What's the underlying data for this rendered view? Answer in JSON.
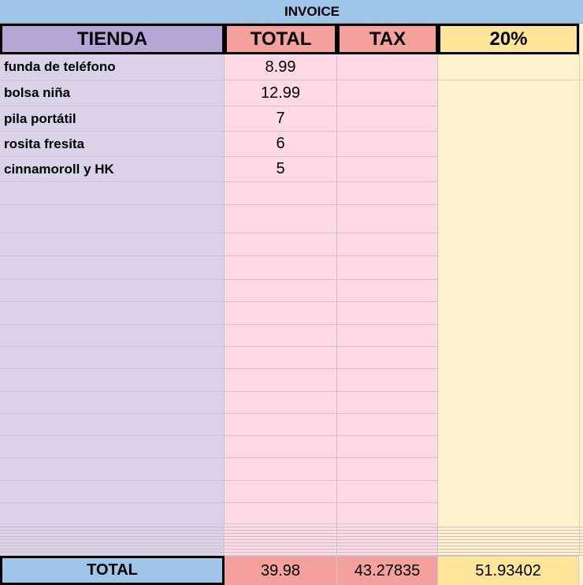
{
  "title": "INVOICE",
  "headers": [
    "TIENDA",
    "TOTAL",
    "TAX",
    "20%"
  ],
  "rows": [
    [
      "funda de teléfono",
      "8.99"
    ],
    [
      "bolsa niña",
      "12.99"
    ],
    [
      "pila portátil",
      "7"
    ],
    [
      "rosita fresita",
      "6"
    ],
    [
      "cinnamoroll y HK",
      "5"
    ]
  ],
  "footer": {
    "label": "TOTAL",
    "values": [
      "39.98",
      "43.27835",
      "51.93402"
    ]
  }
}
